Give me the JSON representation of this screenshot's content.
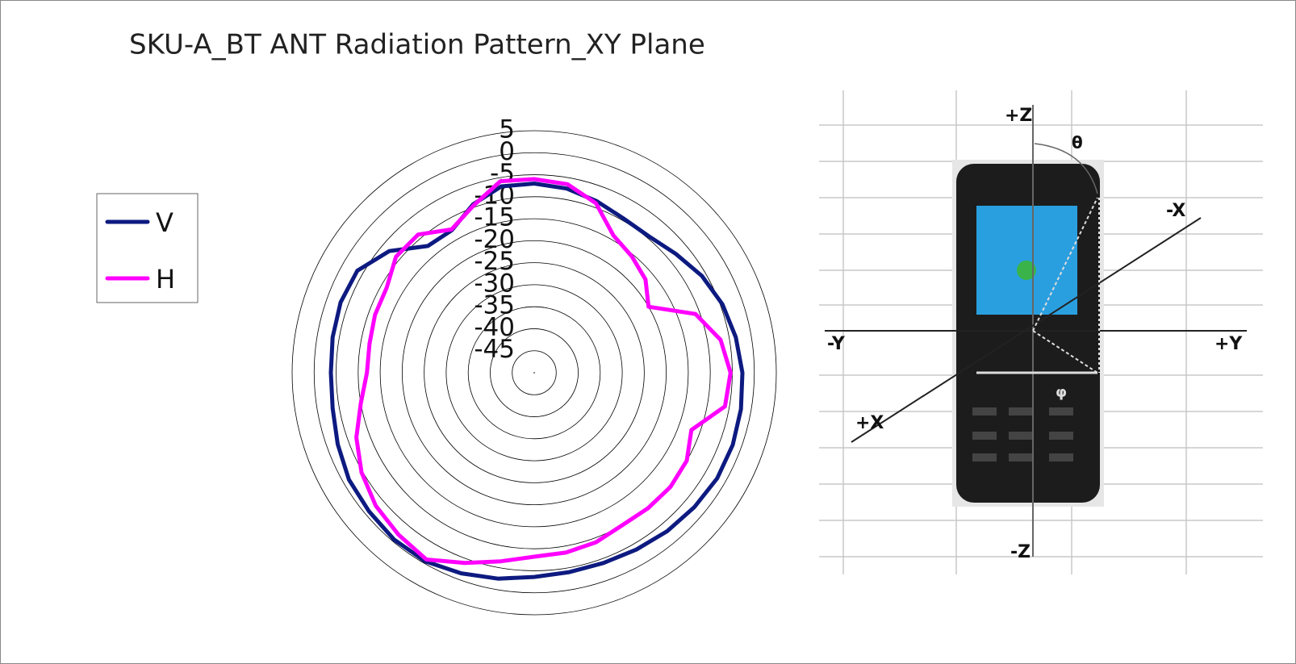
{
  "chart_data": {
    "type": "radar",
    "title": "SKU-A_BT ANT Radiation Pattern_XY Plane",
    "categories": [
      null,
      null,
      null,
      null,
      null,
      null,
      null,
      null,
      null,
      null,
      null,
      null,
      null,
      null,
      null,
      null,
      null,
      null,
      null,
      null,
      null,
      null,
      null,
      null,
      null,
      null,
      null,
      null,
      null,
      null,
      null,
      null,
      null,
      null,
      null,
      null
    ],
    "ylim": [
      -50,
      5
    ],
    "yticks": [
      5,
      0,
      -5,
      -10,
      -15,
      -20,
      -25,
      -30,
      -35,
      -40,
      -45
    ],
    "series": [
      {
        "name": "V",
        "color": "#0d1a80",
        "values": [
          -7,
          -7.5,
          -8.5,
          -9.5,
          -9.5,
          -8,
          -6,
          -4.5,
          -3.5,
          -2.7,
          -2.3,
          -2,
          -2,
          -2.5,
          -3,
          -3.6,
          -4,
          -4,
          -3.6,
          -2.5,
          -1.5,
          -0.5,
          -0.5,
          -1,
          -1.4,
          -2.5,
          -3.5,
          -3.8,
          -3.5,
          -3.2,
          -3.6,
          -7,
          -12.4,
          -12.6,
          -9.3,
          -7
        ]
      },
      {
        "name": "H",
        "color": "#ff00ff",
        "values": [
          -6,
          -6.5,
          -9,
          -14,
          -15.5,
          -17,
          -20,
          -11,
          -7,
          -5.4,
          -6,
          -12,
          -10,
          -9.6,
          -9.8,
          -10,
          -9,
          -8.5,
          -8.2,
          -6.5,
          -4,
          -1,
          -2,
          -3,
          -4.7,
          -7,
          -10,
          -12,
          -12,
          -11.5,
          -11.3,
          -9,
          -9,
          -12.4,
          -9.6,
          -5.8
        ]
      }
    ]
  },
  "diagram": {
    "labels": {
      "plus_z": "+Z",
      "minus_z": "-Z",
      "minus_y": "-Y",
      "plus_y": "+Y",
      "minus_x": "-X",
      "plus_x": "+X",
      "theta": "θ",
      "phi": "φ"
    }
  }
}
